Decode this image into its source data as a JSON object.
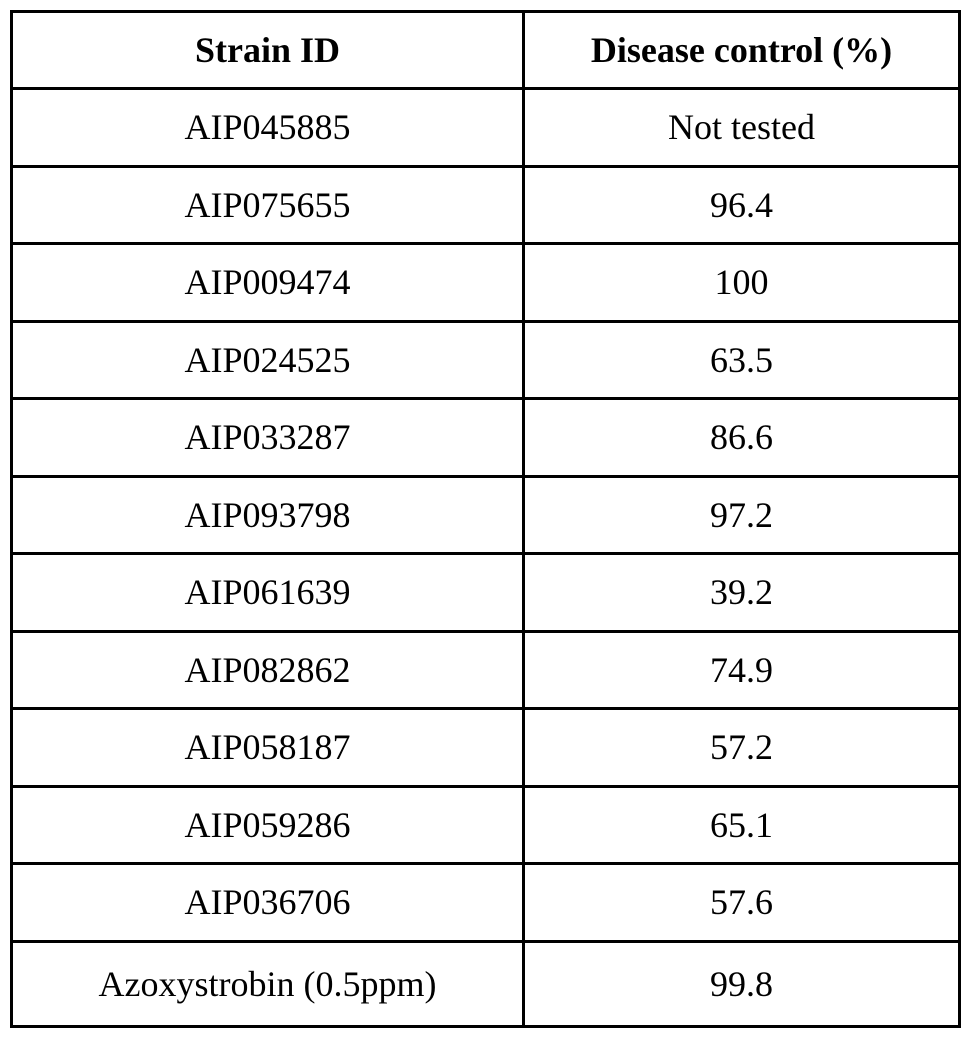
{
  "table": {
    "header": [
      "Strain ID",
      "Disease control (%)"
    ],
    "rows": [
      [
        "AIP045885",
        "Not tested"
      ],
      [
        "AIP075655",
        "96.4"
      ],
      [
        "AIP009474",
        "100"
      ],
      [
        "AIP024525",
        "63.5"
      ],
      [
        "AIP033287",
        "86.6"
      ],
      [
        "AIP093798",
        "97.2"
      ],
      [
        "AIP061639",
        "39.2"
      ],
      [
        "AIP082862",
        "74.9"
      ],
      [
        "AIP058187",
        "57.2"
      ],
      [
        "AIP059286",
        "65.1"
      ],
      [
        "AIP036706",
        "57.6"
      ],
      [
        "Azoxystrobin (0.5ppm)",
        "99.8"
      ]
    ]
  }
}
